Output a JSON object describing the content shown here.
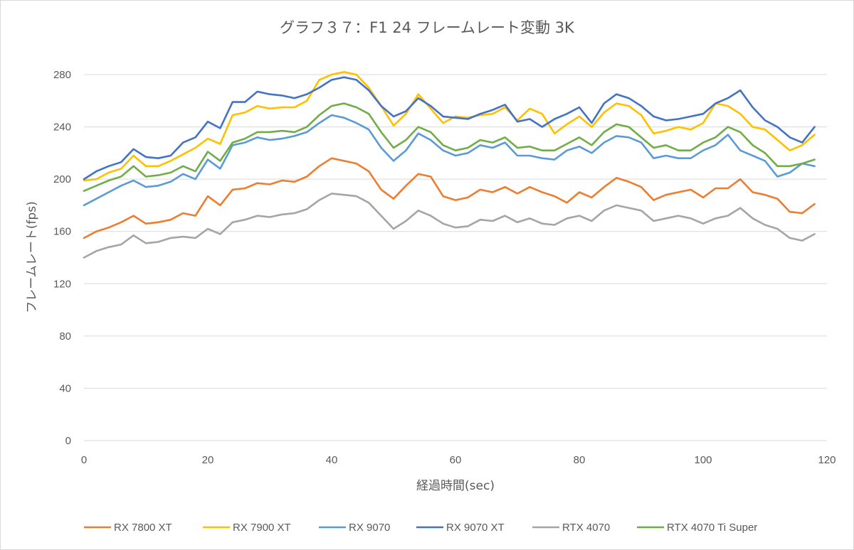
{
  "chart_data": {
    "type": "line",
    "title": "グラフ３７：F1 24 フレームレート変動 3K",
    "xlabel": "経過時間(sec)",
    "ylabel": "フレームレート(fps)",
    "xlim": [
      0,
      120
    ],
    "ylim": [
      0,
      280
    ],
    "xticks": [
      0,
      20,
      40,
      60,
      80,
      100,
      120
    ],
    "yticks": [
      0,
      40,
      80,
      120,
      160,
      200,
      240,
      280
    ],
    "grid": "horizontal",
    "legend_position": "bottom",
    "x": [
      0,
      2,
      4,
      6,
      8,
      10,
      12,
      14,
      16,
      18,
      20,
      22,
      24,
      26,
      28,
      30,
      32,
      34,
      36,
      38,
      40,
      42,
      44,
      46,
      48,
      50,
      52,
      54,
      56,
      58,
      60,
      62,
      64,
      66,
      68,
      70,
      72,
      74,
      76,
      78,
      80,
      82,
      84,
      86,
      88,
      90,
      92,
      94,
      96,
      98,
      100,
      102,
      104,
      106,
      108,
      110,
      112,
      114,
      116,
      118
    ],
    "series": [
      {
        "name": "RX 7800 XT",
        "color": "#ed7d31",
        "values": [
          155,
          160,
          163,
          167,
          172,
          166,
          167,
          169,
          174,
          172,
          187,
          180,
          192,
          193,
          197,
          196,
          199,
          198,
          202,
          210,
          216,
          214,
          212,
          206,
          192,
          185,
          195,
          204,
          202,
          187,
          184,
          186,
          192,
          190,
          194,
          189,
          194,
          190,
          187,
          182,
          190,
          186,
          194,
          201,
          198,
          194,
          184,
          188,
          190,
          192,
          186,
          193,
          193,
          200,
          190,
          188,
          185,
          175,
          174,
          181
        ]
      },
      {
        "name": "RX 7900 XT",
        "color": "#ffc000",
        "values": [
          199,
          200,
          205,
          208,
          218,
          210,
          210,
          214,
          219,
          224,
          231,
          227,
          249,
          251,
          256,
          254,
          255,
          255,
          260,
          276,
          280,
          282,
          280,
          270,
          256,
          241,
          250,
          265,
          254,
          243,
          248,
          247,
          249,
          250,
          255,
          245,
          254,
          250,
          235,
          242,
          248,
          240,
          251,
          258,
          256,
          249,
          235,
          237,
          240,
          238,
          243,
          258,
          256,
          250,
          240,
          238,
          230,
          222,
          226,
          234
        ]
      },
      {
        "name": "RX 9070",
        "color": "#5b9bd5",
        "values": [
          180,
          185,
          190,
          195,
          199,
          194,
          195,
          198,
          204,
          200,
          215,
          208,
          226,
          228,
          232,
          230,
          231,
          233,
          236,
          243,
          249,
          247,
          243,
          238,
          224,
          214,
          222,
          235,
          230,
          222,
          218,
          220,
          226,
          224,
          228,
          218,
          218,
          216,
          215,
          222,
          225,
          220,
          228,
          233,
          232,
          228,
          216,
          218,
          216,
          216,
          222,
          226,
          234,
          222,
          218,
          214,
          202,
          205,
          212,
          210
        ]
      },
      {
        "name": "RX 9070 XT",
        "color": "#4472c4",
        "values": [
          200,
          206,
          210,
          213,
          223,
          217,
          216,
          218,
          228,
          232,
          244,
          239,
          259,
          259,
          267,
          265,
          264,
          262,
          265,
          270,
          276,
          278,
          276,
          268,
          256,
          248,
          252,
          262,
          256,
          248,
          247,
          246,
          250,
          253,
          257,
          244,
          246,
          240,
          246,
          250,
          255,
          243,
          258,
          265,
          262,
          256,
          248,
          245,
          246,
          248,
          250,
          258,
          262,
          268,
          255,
          245,
          240,
          232,
          228,
          240
        ]
      },
      {
        "name": "RTX 4070",
        "color": "#a5a5a5",
        "values": [
          140,
          145,
          148,
          150,
          157,
          151,
          152,
          155,
          156,
          155,
          162,
          158,
          167,
          169,
          172,
          171,
          173,
          174,
          177,
          184,
          189,
          188,
          187,
          182,
          172,
          162,
          168,
          176,
          172,
          166,
          163,
          164,
          169,
          168,
          172,
          167,
          170,
          166,
          165,
          170,
          172,
          168,
          176,
          180,
          178,
          176,
          168,
          170,
          172,
          170,
          166,
          170,
          172,
          178,
          170,
          165,
          162,
          155,
          153,
          158
        ]
      },
      {
        "name": "RTX 4070 Ti Super",
        "color": "#70ad47",
        "values": [
          191,
          195,
          199,
          202,
          210,
          202,
          203,
          205,
          210,
          206,
          221,
          214,
          228,
          231,
          236,
          236,
          237,
          236,
          240,
          249,
          256,
          258,
          255,
          250,
          236,
          224,
          230,
          240,
          236,
          226,
          222,
          224,
          230,
          228,
          232,
          224,
          225,
          222,
          222,
          227,
          232,
          226,
          236,
          242,
          240,
          232,
          224,
          226,
          222,
          222,
          228,
          232,
          240,
          236,
          226,
          220,
          210,
          210,
          212,
          215
        ]
      }
    ]
  }
}
